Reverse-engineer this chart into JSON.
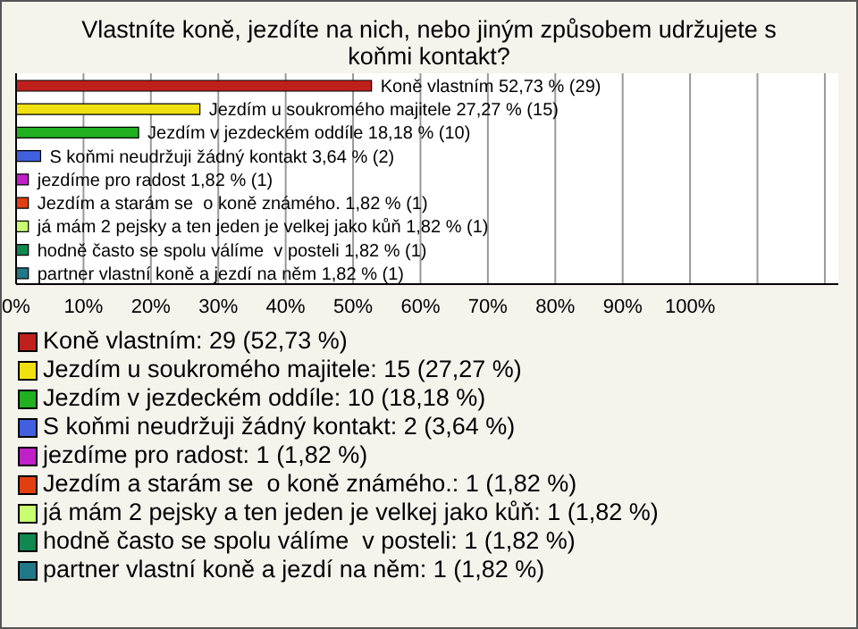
{
  "chart_data": {
    "type": "bar",
    "orientation": "horizontal",
    "stacked": true,
    "title": "Vlastníte koně, jezdíte na nich, nebo jiným způsobem udržujete s koňmi kontakt?",
    "categories": [
      null,
      null,
      null,
      null,
      null,
      null,
      null,
      null,
      null
    ],
    "series": [
      {
        "name": "Koně vlastním: 29 (52,73 %)",
        "color": "#c0201c",
        "values": [
          52.73,
          null,
          null,
          null,
          null,
          null,
          null,
          null,
          null
        ],
        "value_labels": [
          "Koně vlastním 52,73 % (29)",
          null,
          null,
          null,
          null,
          null,
          null,
          null,
          null
        ]
      },
      {
        "name": "Jezdím u soukromého majitele: 15 (27,27 %)",
        "color": "#f0e010",
        "values": [
          null,
          27.27,
          null,
          null,
          null,
          null,
          null,
          null,
          null
        ],
        "value_labels": [
          null,
          "Jezdím u soukromého majitele 27,27 % (15)",
          null,
          null,
          null,
          null,
          null,
          null,
          null
        ]
      },
      {
        "name": "Jezdím v jezdeckém oddíle: 10 (18,18 %)",
        "color": "#20b020",
        "values": [
          null,
          null,
          18.18,
          null,
          null,
          null,
          null,
          null,
          null
        ],
        "value_labels": [
          null,
          null,
          "Jezdím v jezdeckém oddíle 18,18 % (10)",
          null,
          null,
          null,
          null,
          null,
          null
        ]
      },
      {
        "name": "S koňmi neudržuji žádný kontakt: 2 (3,64 %)",
        "color": "#4060e0",
        "values": [
          null,
          null,
          null,
          3.64,
          null,
          null,
          null,
          null,
          null
        ],
        "value_labels": [
          null,
          null,
          null,
          "S koňmi neudržuji žádný kontakt 3,64 % (2)",
          null,
          null,
          null,
          null,
          null
        ]
      },
      {
        "name": "jezdíme pro radost: 1 (1,82 %)",
        "color": "#c020c8",
        "values": [
          null,
          null,
          null,
          null,
          1.82,
          null,
          null,
          null,
          null
        ],
        "value_labels": [
          null,
          null,
          null,
          null,
          "jezdíme pro radost 1,82 % (1)",
          null,
          null,
          null,
          null
        ]
      },
      {
        "name": "Jezdím a starám se  o koně známého.: 1 (1,82 %)",
        "color": "#e04010",
        "values": [
          null,
          null,
          null,
          null,
          null,
          1.82,
          null,
          null,
          null
        ],
        "value_labels": [
          null,
          null,
          null,
          null,
          null,
          "Jezdím a starám se  o koně známého. 1,82 % (1)",
          null,
          null,
          null
        ]
      },
      {
        "name": "já mám 2 pejsky a ten jeden je velkej jako kůň: 1 (1,82 %)",
        "color": "#c8ff70",
        "values": [
          null,
          null,
          null,
          null,
          null,
          null,
          1.82,
          null,
          null
        ],
        "value_labels": [
          null,
          null,
          null,
          null,
          null,
          null,
          "já mám 2 pejsky a ten jeden je velkej jako kůň 1,82 % (1)",
          null,
          null
        ]
      },
      {
        "name": "hodně často se spolu válíme  v posteli: 1 (1,82 %)",
        "color": "#108850",
        "values": [
          null,
          null,
          null,
          null,
          null,
          null,
          null,
          1.82,
          null
        ],
        "value_labels": [
          null,
          null,
          null,
          null,
          null,
          null,
          null,
          "hodně často se spolu válíme  v posteli 1,82 % (1)",
          null
        ]
      },
      {
        "name": "partner vlastní koně a jezdí na něm: 1 (1,82 %)",
        "color": "#207888",
        "values": [
          null,
          null,
          null,
          null,
          null,
          null,
          null,
          null,
          1.82
        ],
        "value_labels": [
          null,
          null,
          null,
          null,
          null,
          null,
          null,
          null,
          "partner vlastní koně a jezdí na něm 1,82 % (1)"
        ]
      }
    ],
    "xlim": [
      0,
      122
    ],
    "xticks": [
      {
        "value": 0,
        "label": "0%"
      },
      {
        "value": 10,
        "label": "10%"
      },
      {
        "value": 20,
        "label": "20%"
      },
      {
        "value": 30,
        "label": "30%"
      },
      {
        "value": 40,
        "label": "40%"
      },
      {
        "value": 50,
        "label": "50%"
      },
      {
        "value": 60,
        "label": "60%"
      },
      {
        "value": 70,
        "label": "70%"
      },
      {
        "value": 80,
        "label": "80%"
      },
      {
        "value": 90,
        "label": "90%"
      },
      {
        "value": 100,
        "label": "100%"
      },
      {
        "value": 110,
        "label": null
      },
      {
        "value": 120,
        "label": null
      }
    ],
    "grid": "x",
    "legend": "bottom"
  }
}
